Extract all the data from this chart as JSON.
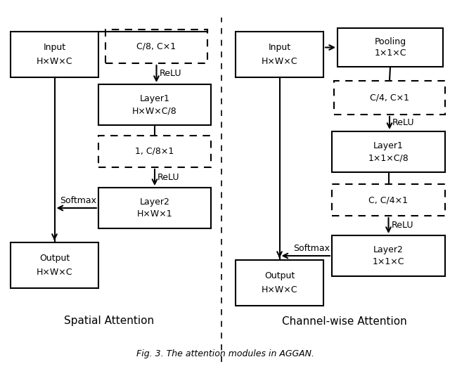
{
  "fig_width": 6.4,
  "fig_height": 5.45,
  "dpi": 100,
  "bg_color": "#ffffff",
  "box_edge": "#000000",
  "box_face": "#ffffff",
  "line_color": "#000000",
  "text_color": "#000000",
  "caption": "Fig. 3. The attention modules in AGGAN.",
  "left_title": "Spatial Attention",
  "right_title": "Channel-wise Attention",
  "font_size_box": 9,
  "font_size_label": 9,
  "font_size_title": 11,
  "font_size_caption": 9
}
